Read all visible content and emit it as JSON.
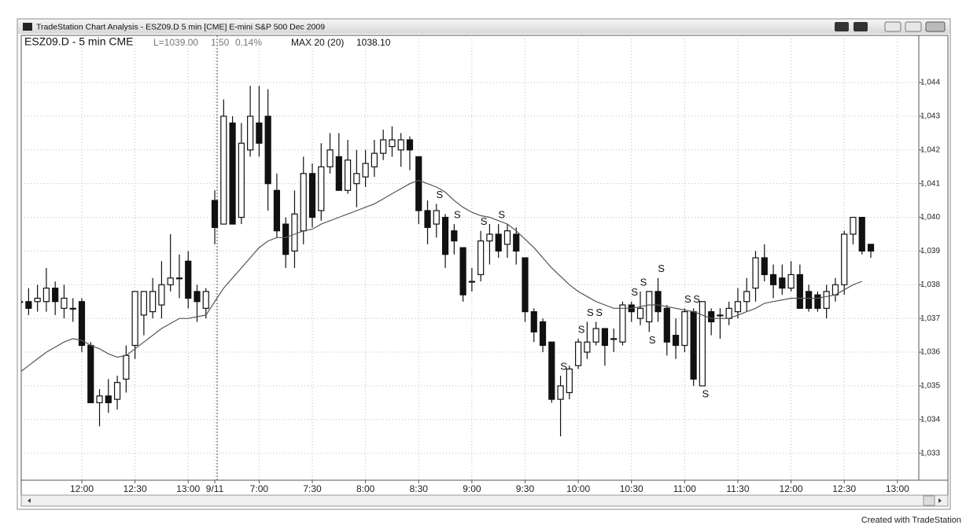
{
  "window_title": "TradeStation Chart Analysis - ESZ09.D 5 min [CME] E-mini S&P 500 Dec 2009",
  "footer": "Created with TradeStation",
  "chart_data": {
    "type": "candlestick",
    "symbol": "ESZ09.D - 5 min CME",
    "last": "L=1039.00",
    "change": "1.50",
    "change_pct": "0.14%",
    "indicator": "MAX 20 (20)",
    "indicator_value": "1038.10",
    "categories": [
      null,
      null,
      null,
      null,
      null,
      null,
      null,
      "12:00",
      null,
      null,
      null,
      null,
      null,
      "12:30",
      null,
      null,
      null,
      null,
      null,
      "13:00",
      null,
      null,
      "9/11",
      null,
      null,
      null,
      null,
      "7:00",
      null,
      null,
      null,
      null,
      null,
      "7:30",
      null,
      null,
      null,
      null,
      null,
      "8:00",
      null,
      null,
      null,
      null,
      null,
      "8:30",
      null,
      null,
      null,
      null,
      null,
      "9:00",
      null,
      null,
      null,
      null,
      null,
      "9:30",
      null,
      null,
      null,
      null,
      null,
      "10:00",
      null,
      null,
      null,
      null,
      null,
      "10:30",
      null,
      null,
      null,
      null,
      null,
      "11:00",
      null,
      null,
      null,
      null,
      null,
      "11:30",
      null,
      null,
      null,
      null,
      null,
      "12:00",
      null,
      null,
      null,
      null,
      null,
      "12:30",
      null,
      null,
      null,
      null,
      null,
      "13:00"
    ],
    "open": [
      1037.5,
      1037.5,
      1037.5,
      1037.5,
      1037.9,
      1037.3,
      1037.3,
      1037.5,
      1036.2,
      1034.5,
      1034.7,
      1034.6,
      1035.2,
      1036.2,
      1037.1,
      1037.2,
      1037.4,
      1038,
      1038.2,
      1038.7,
      1037.8,
      1037.3,
      1040.5,
      1039.8,
      1042.8,
      1040,
      1042,
      1042.8,
      1043,
      1040.8,
      1039.8,
      1039,
      1039.6,
      1041.3,
      1040.2,
      1041.5,
      1041.8,
      1040.8,
      1041,
      1041.2,
      1041.5,
      1041.9,
      1042.1,
      1042,
      1042.3,
      1041.8,
      1040.2,
      1039.8,
      1040,
      1039.6,
      1039.1,
      1038.1,
      1038.3,
      1039.3,
      1039.5,
      1039.2,
      1039.5,
      1038.8,
      1037.2,
      1036.9,
      1036.3,
      1034.6,
      1034.8,
      1035.6,
      1036,
      1036.3,
      1036.7,
      1036.4,
      1036.3,
      1037.4,
      1037,
      1036.9,
      1037.8,
      1037.3,
      1036.5,
      1036.2,
      1037.2,
      1035,
      1037.2,
      1037.1,
      1037,
      1037.2,
      1037.5,
      1037.9,
      1038.8,
      1038.3,
      1038.2,
      1037.9,
      1038.3,
      1037.8,
      1037.7,
      1037.3,
      1037.7,
      1038,
      1039.5,
      1040,
      1039.2,
      null,
      null,
      null
    ],
    "high": [
      1038,
      1037.9,
      1038,
      1038.5,
      1038.1,
      1038,
      1037.6,
      1037.6,
      1036.3,
      1034.9,
      1035.2,
      1035.3,
      1036.2,
      1037.8,
      1037.8,
      1038.2,
      1038.7,
      1039.5,
      1038.9,
      1039,
      1038,
      1037.9,
      1040.8,
      1043.5,
      1043,
      1042.8,
      1043.9,
      1043.9,
      1043.8,
      1041.3,
      1040,
      1040.8,
      1041.8,
      1041.6,
      1042.2,
      1042.5,
      1042.5,
      1042.3,
      1042,
      1042,
      1042.3,
      1042.6,
      1042.7,
      1042.5,
      1042.4,
      1041.8,
      1040.5,
      1040.4,
      1040.1,
      1039.8,
      1039.1,
      1038.5,
      1039.6,
      1039.8,
      1039.8,
      1039.8,
      1039.7,
      1038.8,
      1037.3,
      1037,
      1036.3,
      1035.3,
      1035.6,
      1036.4,
      1036.9,
      1036.9,
      1036.7,
      1036.7,
      1037.5,
      1037.5,
      1037.8,
      1037.8,
      1038.2,
      1037.4,
      1037,
      1037.3,
      1037.3,
      1037.5,
      1037.3,
      1037.3,
      1037.5,
      1037.9,
      1038.2,
      1039,
      1039.2,
      1038.6,
      1038.6,
      1038.7,
      1038.6,
      1038,
      1037.8,
      1038,
      1038.2,
      1039.6,
      1040,
      1040,
      1039.2,
      null,
      null,
      null
    ],
    "low": [
      1036.9,
      1037.1,
      1037.2,
      1037.2,
      1037.1,
      1037,
      1036.9,
      1036,
      1034.5,
      1033.8,
      1034.2,
      1034.3,
      1034.8,
      1035.8,
      1036.5,
      1037,
      1037,
      1037.8,
      1037.6,
      1037.3,
      1036.9,
      1037,
      1039.2,
      1039.8,
      1039.8,
      1039.8,
      1041.8,
      1041.8,
      1040.2,
      1039.4,
      1038.5,
      1038.5,
      1039.2,
      1039.7,
      1039.9,
      1041.3,
      1040.8,
      1040.7,
      1040.3,
      1040.9,
      1041.2,
      1041.7,
      1041.8,
      1041.5,
      1041.4,
      1039.8,
      1039.2,
      1039.4,
      1038.5,
      1038.9,
      1037.5,
      1037.8,
      1038.1,
      1038.6,
      1038.8,
      1038.8,
      1038.6,
      1036.9,
      1036.3,
      1036,
      1034.5,
      1033.5,
      1034.6,
      1035.5,
      1035.8,
      1036.2,
      1035.6,
      1036,
      1036.2,
      1036.9,
      1036.8,
      1036.6,
      1036.9,
      1035.9,
      1035.8,
      1036,
      1035,
      1035,
      1036.5,
      1036.4,
      1036.8,
      1037,
      1037.2,
      1037.5,
      1038.1,
      1037.6,
      1037.7,
      1037.8,
      1037.3,
      1037.2,
      1037.2,
      1037,
      1037.5,
      1037.7,
      1039.2,
      1038.9,
      1038.8,
      null,
      null,
      null
    ],
    "close": [
      1037.5,
      1037.3,
      1037.6,
      1037.9,
      1037.5,
      1037.6,
      1037.3,
      1036.2,
      1034.5,
      1034.7,
      1034.5,
      1035.1,
      1035.9,
      1037.8,
      1037.8,
      1037.8,
      1038,
      1038.2,
      1038.2,
      1037.6,
      1037.5,
      1037.8,
      1039.7,
      1043,
      1039.8,
      1042.2,
      1043,
      1042.2,
      1041,
      1039.6,
      1038.9,
      1040.1,
      1041.3,
      1040,
      1041.5,
      1042,
      1040.8,
      1041.7,
      1041.3,
      1041.6,
      1041.9,
      1042.3,
      1042.3,
      1042.3,
      1042,
      1040.2,
      1039.7,
      1040.2,
      1038.9,
      1039.3,
      1037.7,
      1038.1,
      1039.3,
      1039.5,
      1039,
      1039.6,
      1039,
      1037.2,
      1036.6,
      1036.2,
      1034.6,
      1035,
      1035.5,
      1036.3,
      1036.3,
      1036.7,
      1036.2,
      1036.4,
      1037.4,
      1037.2,
      1037.3,
      1037.8,
      1037.2,
      1036.3,
      1036.2,
      1037.2,
      1035.2,
      1037.5,
      1036.9,
      1037.1,
      1037.3,
      1037.5,
      1037.8,
      1038.8,
      1038.3,
      1038,
      1037.9,
      1038.3,
      1037.3,
      1037.3,
      1037.3,
      1037.8,
      1038,
      1039.5,
      1040,
      1039,
      1039,
      null,
      null,
      null
    ],
    "ma": {
      "color": "#555555",
      "values": [
        1035.4,
        1035.6,
        1035.8,
        1036,
        1036.15,
        1036.3,
        1036.4,
        1036.35,
        1036.2,
        1036.1,
        1035.95,
        1035.85,
        1035.9,
        1036.1,
        1036.3,
        1036.5,
        1036.7,
        1036.85,
        1037,
        1037,
        1037.05,
        1037.1,
        1037.5,
        1037.9,
        1038.2,
        1038.5,
        1038.8,
        1039.1,
        1039.3,
        1039.4,
        1039.4,
        1039.5,
        1039.6,
        1039.65,
        1039.8,
        1039.9,
        1040,
        1040.1,
        1040.2,
        1040.3,
        1040.4,
        1040.55,
        1040.7,
        1040.85,
        1041,
        1041.1,
        1041,
        1040.9,
        1040.75,
        1040.5,
        1040.3,
        1040.15,
        1040.05,
        1040,
        1039.9,
        1039.8,
        1039.6,
        1039.35,
        1039.1,
        1038.8,
        1038.5,
        1038.25,
        1038,
        1037.8,
        1037.65,
        1037.5,
        1037.4,
        1037.3,
        1037.3,
        1037.3,
        1037.35,
        1037.4,
        1037.4,
        1037.35,
        1037.3,
        1037.25,
        1037.2,
        1037.1,
        1037,
        1037,
        1037,
        1037.1,
        1037.2,
        1037.3,
        1037.45,
        1037.5,
        1037.55,
        1037.6,
        1037.6,
        1037.6,
        1037.6,
        1037.65,
        1037.7,
        1037.85,
        1038,
        1038.1,
        null,
        null,
        null,
        null
      ]
    },
    "signals": [
      {
        "label": "S",
        "bar": 47,
        "position": "above"
      },
      {
        "label": "S",
        "bar": 49,
        "position": "above"
      },
      {
        "label": "S",
        "bar": 52,
        "position": "above"
      },
      {
        "label": "S",
        "bar": 54,
        "position": "above"
      },
      {
        "label": "S",
        "bar": 61,
        "position": "above"
      },
      {
        "label": "S",
        "bar": 63,
        "position": "above"
      },
      {
        "label": "S",
        "bar": 64,
        "position": "above"
      },
      {
        "label": "S",
        "bar": 65,
        "position": "above"
      },
      {
        "label": "S",
        "bar": 69,
        "position": "above"
      },
      {
        "label": "S",
        "bar": 70,
        "position": "above"
      },
      {
        "label": "S",
        "bar": 71,
        "position": "below"
      },
      {
        "label": "S",
        "bar": 72,
        "position": "above"
      },
      {
        "label": "S",
        "bar": 75,
        "position": "above"
      },
      {
        "label": "S",
        "bar": 76,
        "position": "above"
      },
      {
        "label": "S",
        "bar": 77,
        "position": "below"
      }
    ],
    "ylim": [
      1032.2,
      1045.4
    ],
    "yticks": [
      {
        "value": 1033,
        "label": "1,033"
      },
      {
        "value": 1034,
        "label": "1,034"
      },
      {
        "value": 1035,
        "label": "1,035"
      },
      {
        "value": 1036,
        "label": "1,036"
      },
      {
        "value": 1037,
        "label": "1,037"
      },
      {
        "value": 1038,
        "label": "1,038"
      },
      {
        "value": 1039,
        "label": "1,039"
      },
      {
        "value": 1040,
        "label": "1,040"
      },
      {
        "value": 1041,
        "label": "1,041"
      },
      {
        "value": 1042,
        "label": "1,042"
      },
      {
        "value": 1043,
        "label": "1,043"
      },
      {
        "value": 1044,
        "label": "1,044"
      }
    ],
    "grid": true,
    "up_color": "#ffffff",
    "down_color": "#111111"
  }
}
